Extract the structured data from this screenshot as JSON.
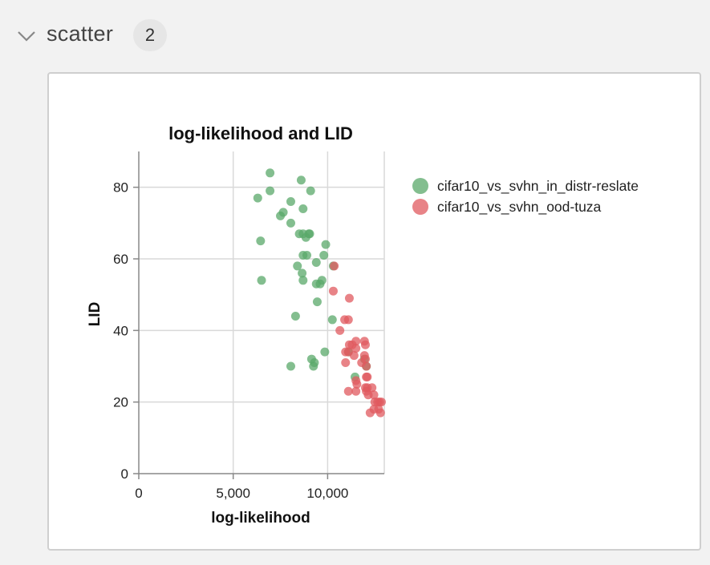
{
  "section": {
    "title": "scatter",
    "count": "2"
  },
  "colors": {
    "series_in_distr": "#5aa86a",
    "series_ood": "#e05a5f",
    "grid": "#d9d9d9",
    "axis": "#888888"
  },
  "chart_data": {
    "type": "scatter",
    "title": "log-likelihood and LID",
    "xlabel": "log-likelihood",
    "ylabel": "LID",
    "xlim": [
      0,
      13000
    ],
    "ylim": [
      0,
      90
    ],
    "xticks": [
      0,
      5000,
      10000
    ],
    "xtick_labels": [
      "0",
      "5,000",
      "10,000"
    ],
    "yticks": [
      0,
      20,
      40,
      60,
      80
    ],
    "ytick_labels": [
      "0",
      "20",
      "40",
      "60",
      "80"
    ],
    "grid": true,
    "legend_position": "right",
    "series": [
      {
        "name": "cifar10_vs_svhn_in_distr-reslate",
        "color": "#5aa86a",
        "points": [
          [
            6950,
            84
          ],
          [
            8600,
            82
          ],
          [
            6300,
            77
          ],
          [
            6950,
            79
          ],
          [
            8050,
            76
          ],
          [
            9100,
            79
          ],
          [
            8700,
            74
          ],
          [
            7650,
            73
          ],
          [
            7500,
            72
          ],
          [
            8050,
            70
          ],
          [
            8500,
            67
          ],
          [
            8700,
            67
          ],
          [
            8850,
            66
          ],
          [
            9000,
            67
          ],
          [
            9050,
            67
          ],
          [
            9900,
            64
          ],
          [
            6450,
            65
          ],
          [
            8700,
            61
          ],
          [
            8900,
            61
          ],
          [
            9800,
            61
          ],
          [
            9400,
            59
          ],
          [
            8400,
            58
          ],
          [
            10300,
            58
          ],
          [
            8650,
            56
          ],
          [
            8700,
            54
          ],
          [
            9400,
            53
          ],
          [
            9600,
            53
          ],
          [
            9700,
            54
          ],
          [
            6500,
            54
          ],
          [
            9450,
            48
          ],
          [
            8300,
            44
          ],
          [
            10250,
            43
          ],
          [
            11100,
            34
          ],
          [
            9850,
            34
          ],
          [
            9150,
            32
          ],
          [
            9300,
            31
          ],
          [
            9250,
            30
          ],
          [
            8050,
            30
          ],
          [
            12050,
            30
          ],
          [
            11950,
            32
          ],
          [
            11450,
            27
          ]
        ]
      },
      {
        "name": "cifar10_vs_svhn_ood-tuza",
        "color": "#e05a5f",
        "points": [
          [
            10350,
            58
          ],
          [
            10300,
            51
          ],
          [
            11150,
            49
          ],
          [
            11100,
            43
          ],
          [
            10900,
            43
          ],
          [
            10650,
            40
          ],
          [
            11500,
            37
          ],
          [
            11950,
            37
          ],
          [
            11300,
            36
          ],
          [
            11150,
            36
          ],
          [
            11500,
            35
          ],
          [
            12000,
            36
          ],
          [
            11100,
            34
          ],
          [
            10950,
            34
          ],
          [
            11400,
            33
          ],
          [
            11950,
            33
          ],
          [
            12000,
            32
          ],
          [
            11800,
            31
          ],
          [
            10950,
            31
          ],
          [
            12050,
            30
          ],
          [
            11500,
            26
          ],
          [
            11550,
            25
          ],
          [
            12050,
            27
          ],
          [
            12100,
            27
          ],
          [
            12000,
            24
          ],
          [
            12100,
            24
          ],
          [
            12350,
            24
          ],
          [
            11100,
            23
          ],
          [
            11500,
            23
          ],
          [
            12050,
            23
          ],
          [
            12450,
            22
          ],
          [
            12150,
            22
          ],
          [
            12500,
            20
          ],
          [
            12750,
            20
          ],
          [
            12650,
            20
          ],
          [
            12850,
            20
          ],
          [
            12450,
            18
          ],
          [
            12700,
            18
          ],
          [
            12250,
            17
          ],
          [
            12800,
            17
          ]
        ]
      }
    ]
  }
}
